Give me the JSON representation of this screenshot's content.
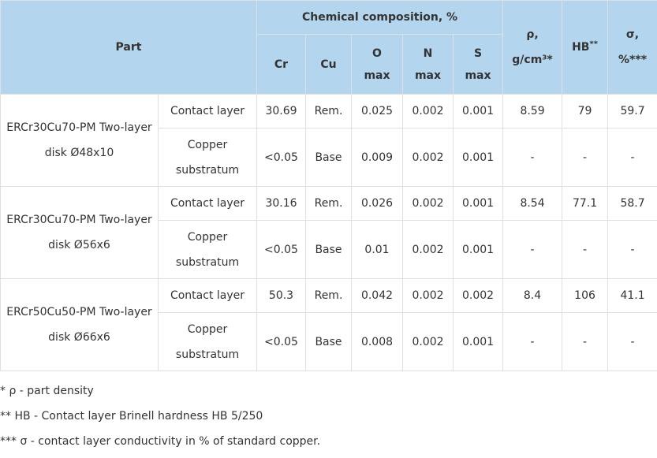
{
  "header": {
    "part": "Part",
    "chemical": "Chemical composition, %",
    "density": "ρ,",
    "density_unit": "g/cm³*",
    "hb": "HB",
    "hb_mark": "**",
    "sigma": "σ,",
    "sigma_unit": "%***",
    "cr": "Cr",
    "cu": "Cu",
    "o": "O",
    "n": "N",
    "s": "S",
    "max": "max"
  },
  "rows": [
    {
      "part": "ERCr30Cu70-PM Two-layer disk Ø48x10",
      "contact": {
        "layer": "Contact layer",
        "cr": "30.69",
        "cu": "Rem.",
        "o": "0.025",
        "n": "0.002",
        "s": "0.001",
        "density": "8.59",
        "hb": "79",
        "sigma": "59.7"
      },
      "copper": {
        "layer": "Copper substratum",
        "cr": "<0.05",
        "cu": "Base",
        "o": "0.009",
        "n": "0.002",
        "s": "0.001",
        "density": "-",
        "hb": "-",
        "sigma": "-"
      }
    },
    {
      "part": "ERCr30Cu70-PM Two-layer disk Ø56x6",
      "contact": {
        "layer": "Contact layer",
        "cr": "30.16",
        "cu": "Rem.",
        "o": "0.026",
        "n": "0.002",
        "s": "0.001",
        "density": "8.54",
        "hb": "77.1",
        "sigma": "58.7"
      },
      "copper": {
        "layer": "Copper substratum",
        "cr": "<0.05",
        "cu": "Base",
        "o": "0.01",
        "n": "0.002",
        "s": "0.001",
        "density": "-",
        "hb": "-",
        "sigma": "-"
      }
    },
    {
      "part": "ERCr50Cu50-PM Two-layer disk Ø66x6",
      "contact": {
        "layer": "Contact layer",
        "cr": "50.3",
        "cu": "Rem.",
        "o": "0.042",
        "n": "0.002",
        "s": "0.002",
        "density": "8.4",
        "hb": "106",
        "sigma": "41.1"
      },
      "copper": {
        "layer": "Copper substratum",
        "cr": "<0.05",
        "cu": "Base",
        "o": "0.008",
        "n": "0.002",
        "s": "0.001",
        "density": "-",
        "hb": "-",
        "sigma": "-"
      }
    }
  ],
  "notes": [
    "* ρ - part density",
    "** HB - Contact layer Brinell hardness HB 5/250",
    "*** σ - contact layer conductivity in % of standard copper."
  ],
  "colors": {
    "header_bg": "#b4d5ee",
    "border": "#e0e0e0",
    "text": "#333333"
  }
}
